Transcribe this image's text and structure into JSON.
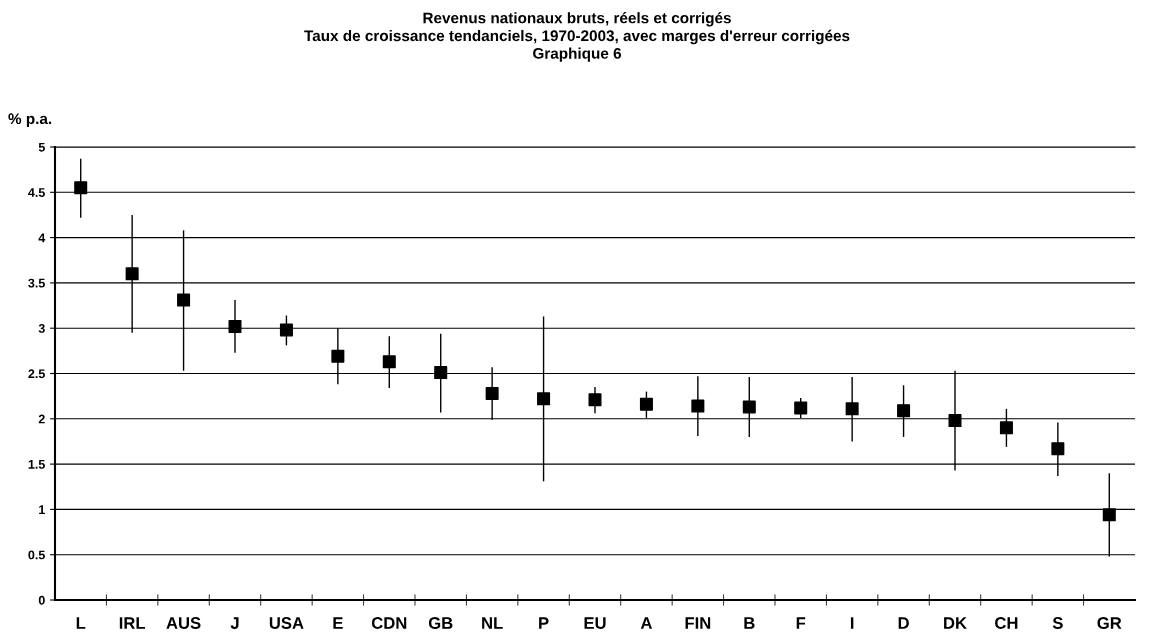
{
  "chart_data": {
    "type": "scatter",
    "title": "Revenus nationaux bruts, réels et corrigés\nTaux de croissance tendanciels, 1970-2003, avec marges d'erreur corrigées\nGraphique 6",
    "ylabel": "% p.a.",
    "categories": [
      "L",
      "IRL",
      "AUS",
      "J",
      "USA",
      "E",
      "CDN",
      "GB",
      "NL",
      "P",
      "EU",
      "A",
      "FIN",
      "B",
      "F",
      "I",
      "D",
      "DK",
      "CH",
      "S",
      "GR"
    ],
    "series": [
      {
        "color": "#000000",
        "values": [
          4.55,
          3.6,
          3.31,
          3.02,
          2.98,
          2.69,
          2.63,
          2.51,
          2.28,
          2.22,
          2.21,
          2.16,
          2.14,
          2.13,
          2.12,
          2.11,
          2.09,
          1.98,
          1.9,
          1.67,
          0.94
        ],
        "errors": [
          [
            4.22,
            4.87
          ],
          [
            2.95,
            4.25
          ],
          [
            2.53,
            4.08
          ],
          [
            2.73,
            3.31
          ],
          [
            2.81,
            3.14
          ],
          [
            2.38,
            3.0
          ],
          [
            2.34,
            2.91
          ],
          [
            2.07,
            2.94
          ],
          [
            1.99,
            2.57
          ],
          [
            1.31,
            3.13
          ],
          [
            2.06,
            2.35
          ],
          [
            2.01,
            2.3
          ],
          [
            1.81,
            2.47
          ],
          [
            1.8,
            2.46
          ],
          [
            2.01,
            2.23
          ],
          [
            1.75,
            2.46
          ],
          [
            1.8,
            2.37
          ],
          [
            1.43,
            2.53
          ],
          [
            1.69,
            2.11
          ],
          [
            1.37,
            1.96
          ],
          [
            0.48,
            1.4
          ]
        ]
      }
    ],
    "ylim": [
      0,
      5
    ],
    "yticks": [
      0,
      0.5,
      1,
      1.5,
      2,
      2.5,
      3,
      3.5,
      4,
      4.5,
      5
    ],
    "grid": "y",
    "marker": "square",
    "legend": false
  }
}
